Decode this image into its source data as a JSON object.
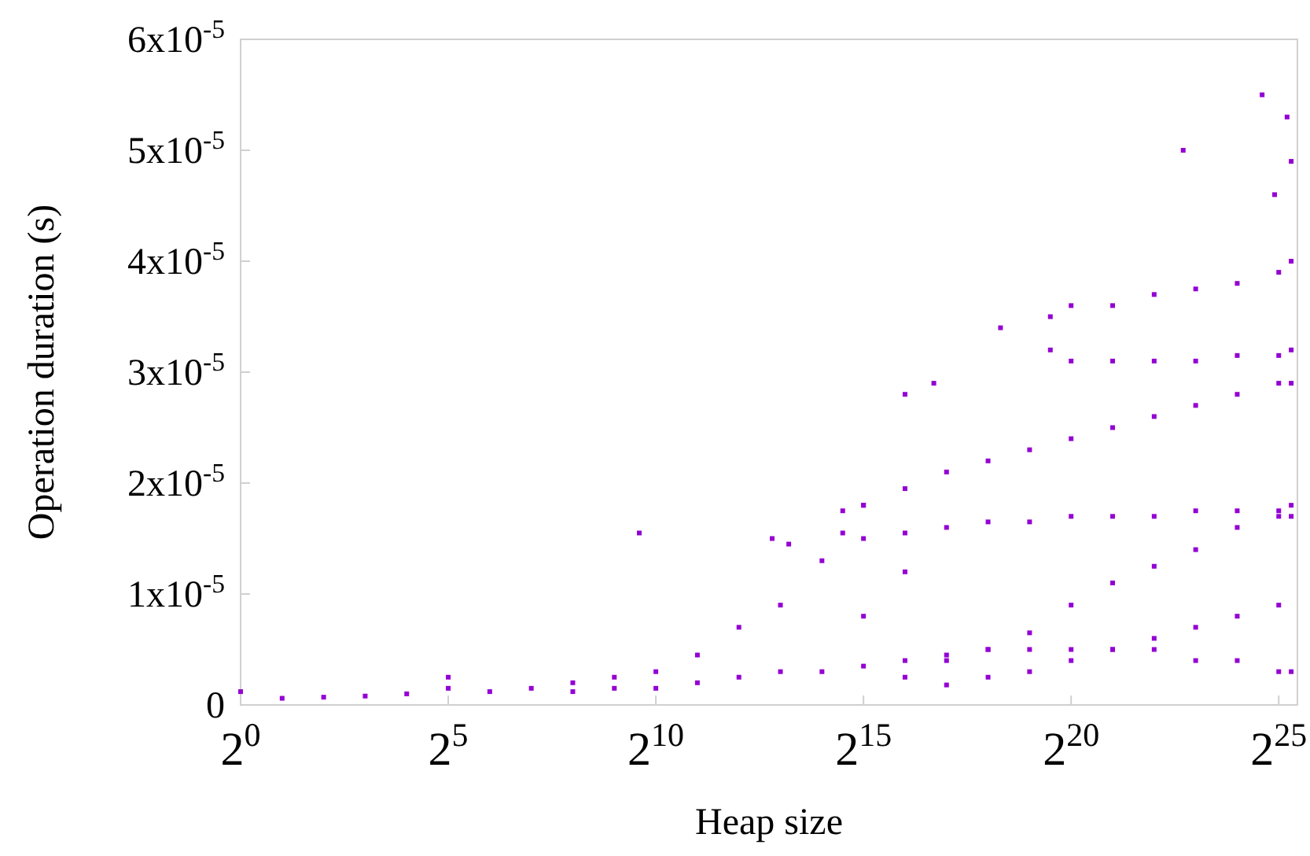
{
  "chart_data": {
    "type": "scatter",
    "xlabel": "Heap size",
    "ylabel": "Operation duration (s)",
    "color": "#9400d3",
    "marker": "square",
    "log": "x",
    "grid": false,
    "xlim": [
      1,
      45830000
    ],
    "xticks": [
      {
        "value": 1,
        "label": "2$^{0}$"
      },
      {
        "value": 32,
        "label": "2$^{5}$"
      },
      {
        "value": 1024,
        "label": "2$^{10}$"
      },
      {
        "value": 32768,
        "label": "2$^{15}$"
      },
      {
        "value": 1048576,
        "label": "2$^{20}$"
      },
      {
        "value": 33554432,
        "label": "2$^{25}$"
      }
    ],
    "ylim": [
      0,
      6e-05
    ],
    "yticks": [
      0,
      {
        "value": 1e-05,
        "label": "1x10$^{-5}$"
      },
      {
        "value": 2e-05,
        "label": "2x10$^{-5}$"
      },
      {
        "value": 3e-05,
        "label": "3x10$^{-5}$"
      },
      {
        "value": 4e-05,
        "label": "4x10$^{-5}$"
      },
      {
        "value": 5e-05,
        "label": "5x10$^{-5}$"
      },
      {
        "value": 6e-05,
        "label": "6x10$^{-5}$"
      }
    ],
    "x": [
      1,
      2,
      4,
      8,
      16,
      32,
      32,
      64,
      128,
      256,
      256,
      512,
      512,
      1024,
      1024,
      2048,
      2048,
      4096,
      4096,
      8192,
      8192,
      16384,
      16384,
      32768,
      32768,
      32768,
      65536,
      65536,
      65536,
      131072,
      131072,
      131072,
      262144,
      262144,
      262144,
      524288,
      524288,
      524288,
      1048576,
      1048576,
      1048576,
      2097152,
      2097152,
      2097152,
      4194304,
      4194304,
      4194304,
      8388608,
      8388608,
      8388608,
      16777216,
      16777216,
      16777216,
      33554432,
      33554432,
      33554432,
      41306000,
      41306000,
      7132,
      9410,
      23170,
      23170,
      32768,
      32768,
      65536,
      65536,
      131072,
      131072,
      262144,
      262144,
      524288,
      524288,
      1048576,
      1048576,
      2097152,
      2097152,
      4194304,
      4194304,
      8388608,
      8388608,
      16777216,
      16777216,
      33554432,
      33554432,
      41306000,
      41306000,
      741455,
      741455,
      1048576,
      1048576,
      2097152,
      2097152,
      4194304,
      4194304,
      8388608,
      8388608,
      16777216,
      16777216,
      33554432,
      33554432,
      41306000,
      41306000,
      776,
      65536,
      106000,
      322700,
      6809000,
      25430000,
      38550000,
      41306000,
      31310000
    ],
    "values": [
      1.2e-06,
      6e-07,
      7e-07,
      8e-07,
      1e-06,
      1.5e-06,
      2.5e-06,
      1.2e-06,
      1.5e-06,
      2e-06,
      1.2e-06,
      2.5e-06,
      1.5e-06,
      3e-06,
      1.5e-06,
      4.5e-06,
      2e-06,
      7e-06,
      2.5e-06,
      9e-06,
      3e-06,
      1.3e-05,
      3e-06,
      1.8e-05,
      3.5e-06,
      8e-06,
      2.5e-06,
      4e-06,
      1.2e-05,
      4e-06,
      4.5e-06,
      1.8e-06,
      5e-06,
      5e-06,
      2.5e-06,
      6.5e-06,
      5e-06,
      3e-06,
      9e-06,
      5e-06,
      4e-06,
      1.1e-05,
      5e-06,
      5e-06,
      1.25e-05,
      5e-06,
      6e-06,
      1.4e-05,
      4e-06,
      7e-06,
      1.6e-05,
      4e-06,
      8e-06,
      1.7e-05,
      3e-06,
      9e-06,
      1.7e-05,
      3e-06,
      1.5e-05,
      1.45e-05,
      1.55e-05,
      1.75e-05,
      1.5e-05,
      1.8e-05,
      1.55e-05,
      1.95e-05,
      1.6e-05,
      2.1e-05,
      1.65e-05,
      2.2e-05,
      1.65e-05,
      2.3e-05,
      1.7e-05,
      2.4e-05,
      1.7e-05,
      2.5e-05,
      1.7e-05,
      2.6e-05,
      1.75e-05,
      2.7e-05,
      1.75e-05,
      2.8e-05,
      1.75e-05,
      2.9e-05,
      1.8e-05,
      2.9e-05,
      3.2e-05,
      3.5e-05,
      3.1e-05,
      3.6e-05,
      3.1e-05,
      3.6e-05,
      3.1e-05,
      3.7e-05,
      3.1e-05,
      3.75e-05,
      3.15e-05,
      3.8e-05,
      3.15e-05,
      3.9e-05,
      3.2e-05,
      4e-05,
      1.55e-05,
      2.8e-05,
      2.9e-05,
      3.4e-05,
      5e-05,
      5.5e-05,
      5.3e-05,
      4.9e-05,
      4.6e-05
    ]
  }
}
